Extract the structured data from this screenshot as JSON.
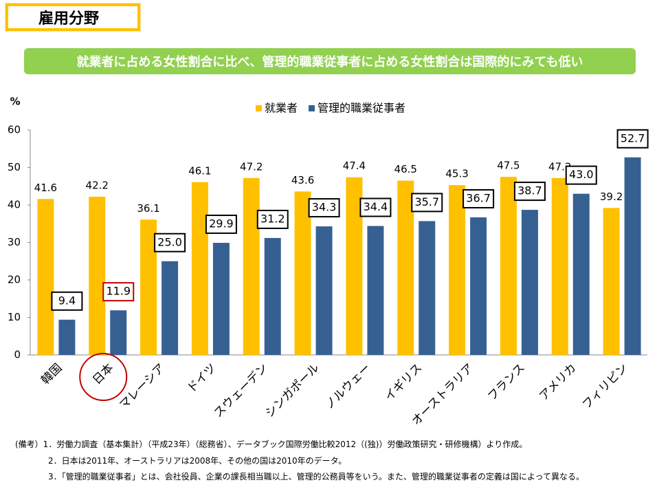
{
  "header": {
    "title": "雇用分野",
    "subtitle": "就業者に占める女性割合に比べ、管理的職業従事者に占める女性割合は国際的にみても低い"
  },
  "chart_data": {
    "type": "bar",
    "y_label": "%",
    "categories": [
      "韓国",
      "日本",
      "マレーシア",
      "ドイツ",
      "スウェーデン",
      "シンガポール",
      "ノルウェー",
      "イギリス",
      "オーストラリア",
      "フランス",
      "アメリカ",
      "フィリピン"
    ],
    "series": [
      {
        "name": "就業者",
        "color": "#ffc000",
        "values": [
          41.6,
          42.2,
          36.1,
          46.1,
          47.2,
          43.6,
          47.4,
          46.5,
          45.3,
          47.5,
          47.2,
          39.2
        ]
      },
      {
        "name": "管理的職業従事者",
        "color": "#376092",
        "values": [
          9.4,
          11.9,
          25.0,
          29.9,
          31.2,
          34.3,
          34.4,
          35.7,
          36.7,
          38.7,
          43.0,
          52.7
        ],
        "value_labels": [
          "9.4",
          "11.9",
          "25.0",
          "29.9",
          "31.2",
          "34.3",
          "34.4",
          "35.7",
          "36.7",
          "38.7",
          "43.0",
          "52.7"
        ]
      }
    ],
    "ylim": [
      0,
      60
    ],
    "yticks": [
      0,
      10,
      20,
      30,
      40,
      50,
      60
    ],
    "grid": false,
    "legend": "top",
    "highlight": {
      "index": 1,
      "color": "#c00000"
    }
  },
  "notes": [
    "(備考）1．労働力調査（基本集計）（平成23年）（総務省）、データブック国際労働比較2012（(独)）労働政策研究・研修機構）より作成。",
    "2．日本は2011年、オーストラリアは2008年、その他の国は2010年のデータ。",
    "3．「管理的職業従事者」とは、会社役員、企業の課長相当職以上、管理的公務員等をいう。また、管理的職業従事者の定義は国によって異なる。"
  ]
}
